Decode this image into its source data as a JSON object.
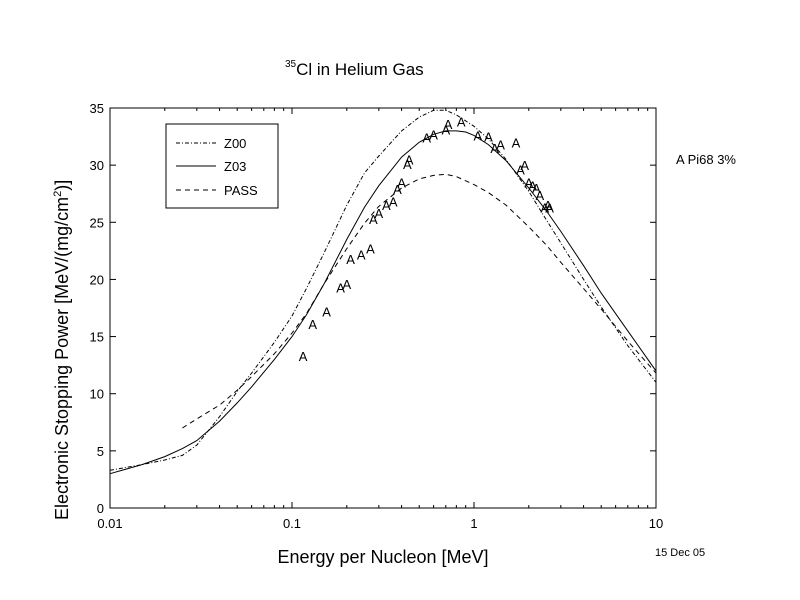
{
  "figure": {
    "title_sup": "35",
    "title_main": "Cl in Helium Gas",
    "annotation": "A Pi68  3%",
    "date": "15 Dec 05"
  },
  "chart_data": {
    "type": "line",
    "title": "35Cl in Helium Gas",
    "xlabel": "Energy per Nucleon [MeV]",
    "ylabel_parts": [
      "Electronic Stopping Power [MeV/(mg/cm",
      "2",
      ")]"
    ],
    "xscale": "log",
    "xlim": [
      0.01,
      10
    ],
    "ylim": [
      0,
      35
    ],
    "xticks": [
      {
        "v": 0.01,
        "label": "0.01"
      },
      {
        "v": 0.1,
        "label": "0.1"
      },
      {
        "v": 1,
        "label": "1"
      },
      {
        "v": 10,
        "label": "10"
      }
    ],
    "yticks": [
      0,
      5,
      10,
      15,
      20,
      25,
      30,
      35
    ],
    "grid": false,
    "legend_position": "top-left",
    "series": [
      {
        "name": "Z00",
        "style": "dashdot",
        "x": [
          0.01,
          0.015,
          0.02,
          0.025,
          0.03,
          0.04,
          0.05,
          0.06,
          0.08,
          0.1,
          0.12,
          0.15,
          0.2,
          0.25,
          0.3,
          0.4,
          0.5,
          0.6,
          0.7,
          0.8,
          1.0,
          1.2,
          1.5,
          2.0,
          2.5,
          3.0,
          4.0,
          5.0,
          7.0,
          10.0
        ],
        "y": [
          3.3,
          3.8,
          4.2,
          4.6,
          5.5,
          8.0,
          10.2,
          11.8,
          14.5,
          16.8,
          19.2,
          22.3,
          26.5,
          29.3,
          30.8,
          33.0,
          34.2,
          34.8,
          34.8,
          34.4,
          33.4,
          32.3,
          30.5,
          27.7,
          25.2,
          23.2,
          20.0,
          17.6,
          14.2,
          11.0
        ]
      },
      {
        "name": "Z03",
        "style": "solid",
        "x": [
          0.01,
          0.015,
          0.02,
          0.025,
          0.03,
          0.04,
          0.05,
          0.06,
          0.08,
          0.1,
          0.12,
          0.15,
          0.2,
          0.25,
          0.3,
          0.4,
          0.5,
          0.6,
          0.7,
          0.8,
          0.9,
          1.0,
          1.2,
          1.5,
          2.0,
          2.5,
          3.0,
          4.0,
          5.0,
          7.0,
          10.0
        ],
        "y": [
          3.0,
          3.8,
          4.5,
          5.2,
          5.9,
          7.6,
          9.2,
          10.6,
          13.0,
          15.0,
          16.9,
          19.6,
          23.5,
          26.3,
          28.2,
          30.7,
          32.0,
          32.7,
          33.0,
          33.0,
          32.9,
          32.6,
          31.8,
          30.4,
          28.0,
          26.0,
          24.2,
          21.2,
          18.8,
          15.5,
          12.0
        ]
      },
      {
        "name": "PASS",
        "style": "dashed",
        "x": [
          0.025,
          0.03,
          0.04,
          0.05,
          0.06,
          0.08,
          0.1,
          0.12,
          0.15,
          0.2,
          0.25,
          0.3,
          0.4,
          0.5,
          0.6,
          0.7,
          0.8,
          1.0,
          1.2,
          1.5,
          2.0,
          2.5,
          3.0,
          4.0,
          5.0,
          7.0,
          10.0
        ],
        "y": [
          7.0,
          7.8,
          9.0,
          10.3,
          11.5,
          13.5,
          15.3,
          17.0,
          19.6,
          22.7,
          24.9,
          26.4,
          28.0,
          28.8,
          29.1,
          29.2,
          29.0,
          28.3,
          27.6,
          26.5,
          24.6,
          23.0,
          21.5,
          19.2,
          17.4,
          14.6,
          11.8
        ]
      }
    ],
    "points": {
      "marker": "A",
      "x": [
        0.115,
        0.13,
        0.155,
        0.185,
        0.2,
        0.21,
        0.24,
        0.27,
        0.28,
        0.3,
        0.33,
        0.36,
        0.38,
        0.4,
        0.43,
        0.44,
        0.55,
        0.6,
        0.7,
        0.72,
        0.85,
        1.05,
        1.2,
        1.3,
        1.4,
        1.7,
        1.8,
        1.9,
        2.0,
        2.1,
        2.2,
        2.3,
        2.45,
        2.55,
        2.6
      ],
      "y": [
        13.3,
        16.1,
        17.2,
        19.3,
        19.6,
        21.8,
        22.2,
        22.7,
        25.3,
        25.8,
        26.5,
        26.8,
        27.9,
        28.5,
        30.1,
        30.5,
        32.4,
        32.7,
        33.1,
        33.6,
        33.8,
        32.6,
        32.5,
        31.5,
        31.8,
        32.0,
        29.6,
        30.0,
        28.5,
        28.2,
        28.0,
        27.4,
        26.3,
        26.5,
        26.3
      ]
    }
  }
}
